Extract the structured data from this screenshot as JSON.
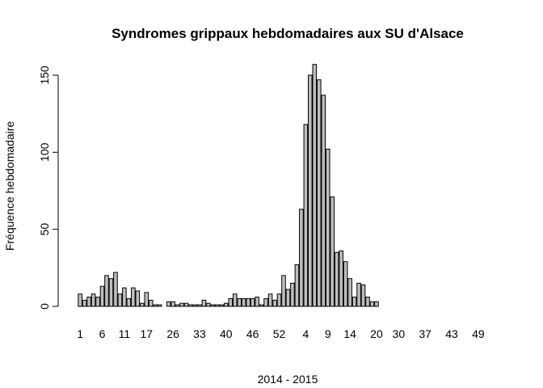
{
  "chart_data": {
    "type": "bar",
    "title": "Syndromes grippaux hebdomadaires aux SU d'Alsace",
    "xlabel": "2014 - 2015",
    "ylabel": "Fréquence hebdomadaire",
    "ylim": [
      0,
      160
    ],
    "yticks": [
      0,
      50,
      100,
      150
    ],
    "grid": false,
    "legend": "none",
    "bar_color": "#bebebe",
    "xtick_labels": [
      "1",
      "6",
      "11",
      "17",
      "26",
      "33",
      "40",
      "46",
      "52",
      "4",
      "9",
      "14",
      "20",
      "30",
      "37",
      "43",
      "49"
    ],
    "xtick_positions": [
      0,
      5,
      10,
      15,
      21,
      27,
      33,
      39,
      45,
      51,
      56,
      61,
      67,
      72,
      78,
      84,
      90
    ],
    "values": [
      8,
      4,
      6,
      8,
      6,
      13,
      20,
      18,
      22,
      8,
      12,
      5,
      12,
      10,
      2,
      9,
      4,
      1,
      1,
      null,
      3,
      3,
      1,
      2,
      2,
      1,
      1,
      1,
      4,
      2,
      1,
      1,
      1,
      2,
      5,
      8,
      5,
      5,
      5,
      5,
      6,
      1,
      5,
      8,
      4,
      8,
      20,
      11,
      15,
      27,
      63,
      118,
      150,
      157,
      147,
      137,
      102,
      71,
      35,
      36,
      29,
      18,
      6,
      15,
      14,
      6,
      3,
      3,
      null,
      null,
      null,
      null,
      null,
      null,
      null,
      null,
      null,
      null,
      null,
      null,
      null,
      null,
      null,
      null,
      null,
      null,
      null,
      null,
      null,
      null,
      null,
      null,
      null,
      null,
      null,
      null
    ]
  }
}
